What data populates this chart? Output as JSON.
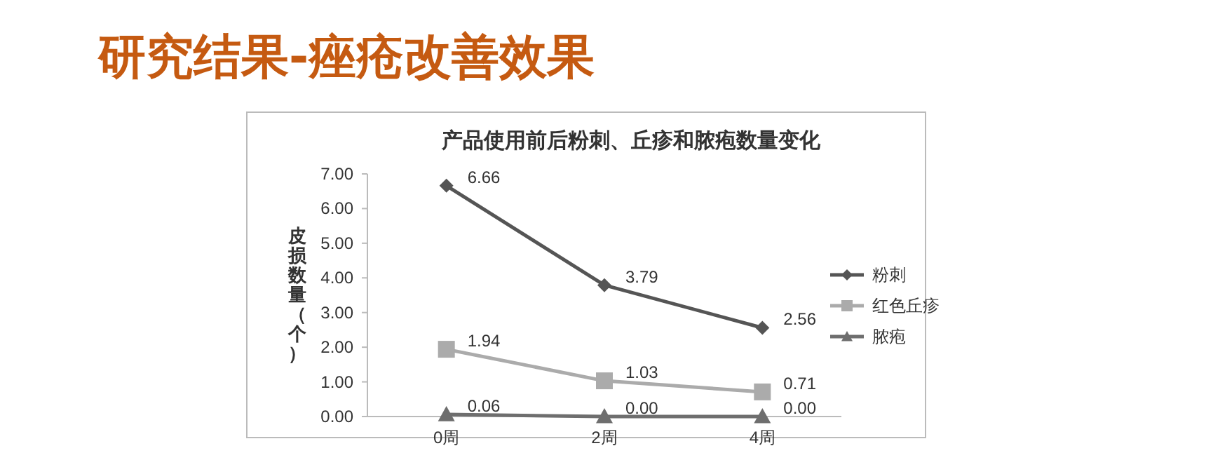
{
  "chart_data": {
    "type": "line",
    "title": "研究结果-痤疮改善效果",
    "subtitle": "产品使用前后粉刺、丘疹和脓疱数量变化",
    "ylabel": "皮损数量（个）",
    "categories": [
      "0周",
      "2周",
      "4周"
    ],
    "ylim": [
      0,
      7
    ],
    "yticks": [
      {
        "value": 0,
        "label": "0.00"
      },
      {
        "value": 1,
        "label": "1.00"
      },
      {
        "value": 2,
        "label": "2.00"
      },
      {
        "value": 3,
        "label": "3.00"
      },
      {
        "value": 4,
        "label": "4.00"
      },
      {
        "value": 5,
        "label": "5.00"
      },
      {
        "value": 6,
        "label": "6.00"
      },
      {
        "value": 7,
        "label": "7.00"
      }
    ],
    "grid": false,
    "legend": "right",
    "series": [
      {
        "name": "粉刺",
        "color": "#555555",
        "marker": "diamond",
        "values": [
          6.66,
          3.79,
          2.56
        ],
        "value_labels": [
          "6.66",
          "3.79",
          "2.56"
        ]
      },
      {
        "name": "红色丘疹",
        "color": "#ababab",
        "marker": "square",
        "values": [
          1.94,
          1.03,
          0.71
        ],
        "value_labels": [
          "1.94",
          "1.03",
          "0.71"
        ]
      },
      {
        "name": "脓疱",
        "color": "#6e6e6e",
        "marker": "triangle",
        "values": [
          0.06,
          0,
          0
        ],
        "value_labels": [
          "0.06",
          "0.00",
          "0.00"
        ]
      }
    ]
  }
}
